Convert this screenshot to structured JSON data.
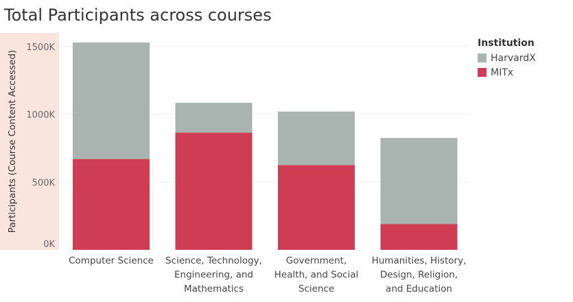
{
  "chart_data": {
    "type": "bar",
    "stacked": true,
    "title": "Total Participants across courses",
    "xlabel": "",
    "ylabel": "Participants (Course Content Accessed)",
    "ylim": [
      0,
      1500000
    ],
    "yticks": [
      {
        "value": 0,
        "label": "0K"
      },
      {
        "value": 500000,
        "label": "500K"
      },
      {
        "value": 1000000,
        "label": "1000K"
      },
      {
        "value": 1500000,
        "label": "1500K"
      }
    ],
    "categories": [
      [
        "Computer Science"
      ],
      [
        "Science, Technology,",
        "Engineering, and",
        "Mathematics"
      ],
      [
        "Government,",
        "Health, and Social",
        "Science"
      ],
      [
        "Humanities, History,",
        "Design, Religion,",
        "and Education"
      ]
    ],
    "legend_title": "Institution",
    "legend_position": "top-right",
    "grid": true,
    "series": [
      {
        "name": "MITx",
        "color": "#cf3d55",
        "values": [
          670000,
          865000,
          625000,
          190000
        ]
      },
      {
        "name": "HarvardX",
        "color": "#a9b3af",
        "values": [
          860000,
          220000,
          395000,
          635000
        ]
      }
    ],
    "legend_order": [
      "HarvardX",
      "MITx"
    ]
  }
}
